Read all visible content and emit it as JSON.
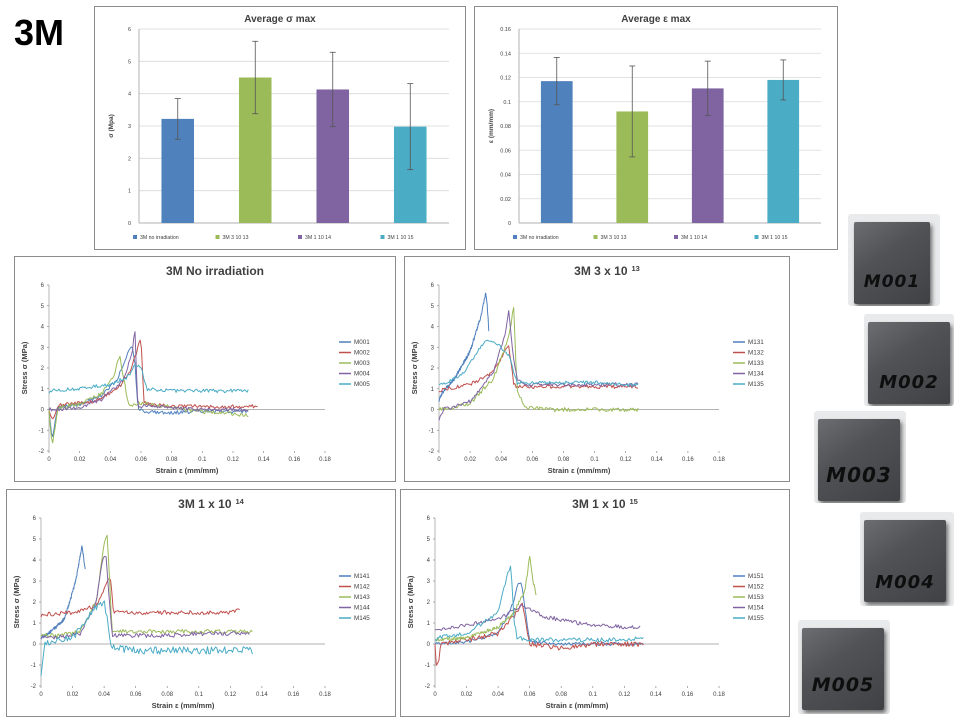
{
  "page_title": "3M",
  "colors": {
    "blue": "#4f81bd",
    "red": "#c0504d",
    "green": "#9bbb59",
    "purple": "#8064a2",
    "cyan": "#4bacc6"
  },
  "samples": [
    "M001",
    "M002",
    "M003",
    "M004",
    "M005"
  ],
  "chart_data": [
    {
      "id": "avg-sigma",
      "type": "bar",
      "title": "Average σ max",
      "ylabel": "σ  (Mpa)",
      "xlabel": "",
      "ylim": [
        0,
        6
      ],
      "yticks": [
        "0",
        "1",
        "2",
        "3",
        "4",
        "5",
        "6"
      ],
      "categories": [
        "3M no irradiation",
        "3M 3 10 13",
        "3M 1 10 14",
        "3M 1 10 15"
      ],
      "values": [
        3.22,
        4.5,
        4.13,
        2.98
      ],
      "errors": [
        0.63,
        1.12,
        1.15,
        1.33
      ],
      "colors": [
        "#4f81bd",
        "#9bbb59",
        "#8064a2",
        "#4bacc6"
      ],
      "grid": true,
      "legend": "bottom"
    },
    {
      "id": "avg-eps",
      "type": "bar",
      "title": "Average ε max",
      "ylabel": "ε  (mm/mm)",
      "xlabel": "",
      "ylim": [
        0,
        0.16
      ],
      "yticks": [
        "0",
        "0.02",
        "0.04",
        "0.06",
        "0.08",
        "0.1",
        "0.12",
        "0.14",
        "0.16"
      ],
      "categories": [
        "3M no irradiation",
        "3M 3 10 13",
        "3M 1 10 14",
        "3M 1 10 15"
      ],
      "values": [
        0.117,
        0.092,
        0.111,
        0.118
      ],
      "errors": [
        0.0195,
        0.0375,
        0.0225,
        0.0165
      ],
      "colors": [
        "#4f81bd",
        "#9bbb59",
        "#8064a2",
        "#4bacc6"
      ],
      "grid": true,
      "legend": "bottom"
    },
    {
      "id": "noirr",
      "type": "line",
      "title": "3M No irradiation",
      "title_sup": "",
      "xlabel": "Strain ε (mm/mm)",
      "ylabel": "Stress σ (MPa)",
      "xlim": [
        0,
        0.18
      ],
      "ylim": [
        -2,
        6
      ],
      "xticks": [
        "0",
        "0.02",
        "0.04",
        "0.06",
        "0.08",
        "0.1",
        "0.12",
        "0.14",
        "0.16",
        "0.18"
      ],
      "yticks": [
        "-2",
        "-1",
        "0",
        "1",
        "2",
        "3",
        "4",
        "5",
        "6"
      ],
      "legend": "right",
      "series": [
        {
          "name": "M001",
          "color": "#4f81bd",
          "noise": 0.09,
          "x": [
            0,
            0.002,
            0.006,
            0.02,
            0.035,
            0.045,
            0.05,
            0.054,
            0.056,
            0.058,
            0.062,
            0.08,
            0.1,
            0.12,
            0.13
          ],
          "y": [
            0,
            -1.4,
            0.1,
            0.25,
            0.7,
            1.5,
            2.5,
            3.1,
            2.2,
            0.1,
            -0.1,
            -0.15,
            -0.1,
            -0.1,
            -0.1
          ]
        },
        {
          "name": "M002",
          "color": "#c0504d",
          "noise": 0.09,
          "x": [
            0,
            0.002,
            0.006,
            0.03,
            0.045,
            0.054,
            0.058,
            0.06,
            0.062,
            0.07,
            0.09,
            0.12,
            0.136
          ],
          "y": [
            0,
            -0.5,
            0.2,
            0.4,
            1.0,
            2.0,
            3.0,
            3.5,
            0.3,
            0.2,
            0.15,
            0.15,
            0.15
          ]
        },
        {
          "name": "M003",
          "color": "#9bbb59",
          "noise": 0.1,
          "x": [
            0,
            0.002,
            0.006,
            0.02,
            0.035,
            0.042,
            0.046,
            0.05,
            0.052,
            0.06,
            0.08,
            0.1,
            0.12,
            0.13
          ],
          "y": [
            0,
            -1.8,
            0.1,
            0.25,
            0.8,
            1.6,
            2.6,
            1.0,
            0.2,
            0.3,
            0.1,
            -0.1,
            -0.2,
            -0.3
          ]
        },
        {
          "name": "M004",
          "color": "#8064a2",
          "noise": 0.09,
          "x": [
            0,
            0.004,
            0.02,
            0.035,
            0.048,
            0.054,
            0.056,
            0.058,
            0.062,
            0.075,
            0.1,
            0.12,
            0.13
          ],
          "y": [
            0,
            0,
            0.1,
            0.5,
            1.4,
            2.6,
            3.9,
            0.0,
            0.2,
            0.1,
            0.0,
            0.0,
            0.0
          ]
        },
        {
          "name": "M005",
          "color": "#4bacc6",
          "noise": 0.09,
          "x": [
            0,
            0.002,
            0.02,
            0.04,
            0.052,
            0.056,
            0.06,
            0.064,
            0.08,
            0.1,
            0.12,
            0.13
          ],
          "y": [
            0.8,
            0.9,
            1.0,
            1.2,
            1.6,
            2.2,
            2.0,
            1.0,
            0.9,
            0.9,
            0.9,
            0.9
          ]
        }
      ]
    },
    {
      "id": "m13",
      "type": "line",
      "title": "3M 3 x 10",
      "title_sup": "13",
      "xlabel": "Strain ε (mm/mm)",
      "ylabel": "Stress σ (MPa)",
      "xlim": [
        0,
        0.18
      ],
      "ylim": [
        -2,
        6
      ],
      "xticks": [
        "0",
        "0.02",
        "0.04",
        "0.06",
        "0.08",
        "0.1",
        "0.12",
        "0.14",
        "0.16",
        "0.18"
      ],
      "yticks": [
        "-2",
        "-1",
        "0",
        "1",
        "2",
        "3",
        "4",
        "5",
        "6"
      ],
      "legend": "right",
      "series": [
        {
          "name": "M131",
          "color": "#4f81bd",
          "noise": 0.08,
          "x": [
            0,
            0.002,
            0.01,
            0.02,
            0.027,
            0.03,
            0.031,
            0.032
          ],
          "y": [
            0.4,
            0.8,
            1.5,
            2.8,
            4.5,
            5.6,
            5.0,
            3.8
          ]
        },
        {
          "name": "M132",
          "color": "#c0504d",
          "noise": 0.09,
          "x": [
            0,
            0.004,
            0.02,
            0.035,
            0.042,
            0.045,
            0.048,
            0.05,
            0.055,
            0.08,
            0.1,
            0.12,
            0.128
          ],
          "y": [
            0.9,
            1.0,
            1.2,
            1.8,
            2.8,
            3.0,
            1.3,
            1.1,
            1.1,
            1.1,
            1.1,
            1.1,
            1.1
          ]
        },
        {
          "name": "M133",
          "color": "#9bbb59",
          "noise": 0.1,
          "x": [
            0,
            0.004,
            0.02,
            0.035,
            0.045,
            0.048,
            0.05,
            0.055,
            0.07,
            0.1,
            0.12,
            0.128
          ],
          "y": [
            0,
            0,
            0.3,
            1.5,
            3.5,
            5.0,
            1.0,
            0.1,
            0.0,
            0.0,
            0.0,
            0.0
          ]
        },
        {
          "name": "M134",
          "color": "#8064a2",
          "noise": 0.09,
          "x": [
            0,
            0.003,
            0.02,
            0.035,
            0.042,
            0.045,
            0.047,
            0.05,
            0.055,
            0.08,
            0.1,
            0.12,
            0.128
          ],
          "y": [
            -0.5,
            0,
            0.4,
            1.8,
            3.5,
            4.8,
            3.0,
            1.5,
            1.2,
            1.2,
            1.2,
            1.2,
            1.2
          ]
        },
        {
          "name": "M135",
          "color": "#4bacc6",
          "noise": 0.08,
          "x": [
            0,
            0.005,
            0.015,
            0.025,
            0.03,
            0.04,
            0.045,
            0.05,
            0.06,
            0.08,
            0.1,
            0.12,
            0.128
          ],
          "y": [
            1.2,
            1.3,
            1.7,
            2.8,
            3.4,
            3.0,
            2.6,
            1.3,
            1.3,
            1.3,
            1.3,
            1.2,
            1.2
          ]
        }
      ]
    },
    {
      "id": "m14",
      "type": "line",
      "title": "3M 1 x 10",
      "title_sup": "14",
      "xlabel": "Strain ε (mm/mm)",
      "ylabel": "Stress σ (MPa)",
      "xlim": [
        0,
        0.18
      ],
      "ylim": [
        -2,
        6
      ],
      "xticks": [
        "0",
        "0.02",
        "0.04",
        "0.06",
        "0.08",
        "0.1",
        "0.12",
        "0.14",
        "0.16",
        "0.18"
      ],
      "yticks": [
        "-2",
        "-1",
        "0",
        "1",
        "2",
        "3",
        "4",
        "5",
        "6"
      ],
      "legend": "right",
      "series": [
        {
          "name": "M141",
          "color": "#4f81bd",
          "noise": 0.08,
          "x": [
            0,
            0.005,
            0.015,
            0.022,
            0.026,
            0.028
          ],
          "y": [
            0.3,
            0.5,
            1.2,
            3.0,
            4.7,
            3.5
          ]
        },
        {
          "name": "M142",
          "color": "#c0504d",
          "noise": 0.1,
          "x": [
            0,
            0.002,
            0.02,
            0.035,
            0.042,
            0.044,
            0.046,
            0.06,
            0.08,
            0.1,
            0.12,
            0.126
          ],
          "y": [
            1.3,
            1.4,
            1.5,
            1.8,
            3.0,
            3.1,
            1.5,
            1.5,
            1.5,
            1.5,
            1.5,
            1.6
          ]
        },
        {
          "name": "M143",
          "color": "#9bbb59",
          "noise": 0.1,
          "x": [
            0,
            0.01,
            0.025,
            0.035,
            0.04,
            0.042,
            0.045,
            0.06,
            0.08,
            0.1,
            0.12,
            0.134
          ],
          "y": [
            0.4,
            0.4,
            0.6,
            2.0,
            4.8,
            5.3,
            0.6,
            0.6,
            0.6,
            0.6,
            0.6,
            0.6
          ]
        },
        {
          "name": "M144",
          "color": "#8064a2",
          "noise": 0.1,
          "x": [
            0,
            0.01,
            0.025,
            0.035,
            0.039,
            0.041,
            0.045,
            0.06,
            0.08,
            0.1,
            0.12,
            0.132
          ],
          "y": [
            0.3,
            0.3,
            0.5,
            2.0,
            4.0,
            4.3,
            0.4,
            0.4,
            0.4,
            0.5,
            0.5,
            0.5
          ]
        },
        {
          "name": "M145",
          "color": "#4bacc6",
          "noise": 0.18,
          "x": [
            0,
            0.002,
            0.004,
            0.02,
            0.035,
            0.04,
            0.045,
            0.06,
            0.08,
            0.1,
            0.12,
            0.134
          ],
          "y": [
            -1.5,
            -0.1,
            0.1,
            0.3,
            1.8,
            2.0,
            -0.2,
            -0.3,
            -0.3,
            -0.3,
            -0.3,
            -0.3
          ]
        }
      ]
    },
    {
      "id": "m15",
      "type": "line",
      "title": "3M 1 x 10",
      "title_sup": "15",
      "xlabel": "Strain ε (mm/mm)",
      "ylabel": "Stress σ (MPa)",
      "xlim": [
        0,
        0.18
      ],
      "ylim": [
        -2,
        6
      ],
      "xticks": [
        "0",
        "0.02",
        "0.04",
        "0.06",
        "0.08",
        "0.1",
        "0.12",
        "0.14",
        "0.16",
        "0.18"
      ],
      "yticks": [
        "-2",
        "-1",
        "0",
        "1",
        "2",
        "3",
        "4",
        "5",
        "6"
      ],
      "legend": "right",
      "series": [
        {
          "name": "M151",
          "color": "#4f81bd",
          "noise": 0.08,
          "x": [
            0,
            0.02,
            0.04,
            0.05,
            0.053,
            0.055,
            0.06,
            0.08,
            0.1,
            0.12,
            0.132
          ],
          "y": [
            0,
            0.1,
            0.5,
            2.0,
            3.0,
            2.8,
            0.1,
            0.0,
            0.0,
            0.0,
            0.0
          ]
        },
        {
          "name": "M152",
          "color": "#c0504d",
          "noise": 0.12,
          "x": [
            0,
            0.001,
            0.004,
            0.02,
            0.04,
            0.052,
            0.055,
            0.06,
            0.08,
            0.1,
            0.12,
            0.132
          ],
          "y": [
            0,
            -1.3,
            0,
            0.2,
            0.5,
            1.5,
            2.0,
            0.0,
            -0.2,
            0.0,
            0.0,
            0.0
          ]
        },
        {
          "name": "M153",
          "color": "#9bbb59",
          "noise": 0.08,
          "x": [
            0,
            0.02,
            0.04,
            0.05,
            0.057,
            0.06,
            0.062,
            0.064
          ],
          "y": [
            0.2,
            0.3,
            0.8,
            1.5,
            2.5,
            4.2,
            3.0,
            2.4
          ]
        },
        {
          "name": "M154",
          "color": "#8064a2",
          "noise": 0.1,
          "x": [
            0,
            0.02,
            0.04,
            0.05,
            0.055,
            0.06,
            0.07,
            0.09,
            0.1,
            0.12,
            0.13
          ],
          "y": [
            0.7,
            0.9,
            1.2,
            1.6,
            1.8,
            1.7,
            1.3,
            1.0,
            0.9,
            0.8,
            0.8
          ]
        },
        {
          "name": "M155",
          "color": "#4bacc6",
          "noise": 0.1,
          "x": [
            0,
            0.002,
            0.02,
            0.04,
            0.045,
            0.048,
            0.05,
            0.052,
            0.06,
            0.08,
            0.1,
            0.12,
            0.132
          ],
          "y": [
            0.2,
            0.3,
            0.5,
            1.5,
            3.0,
            3.8,
            1.2,
            0.3,
            0.2,
            0.2,
            0.2,
            0.2,
            0.3
          ]
        }
      ]
    }
  ]
}
